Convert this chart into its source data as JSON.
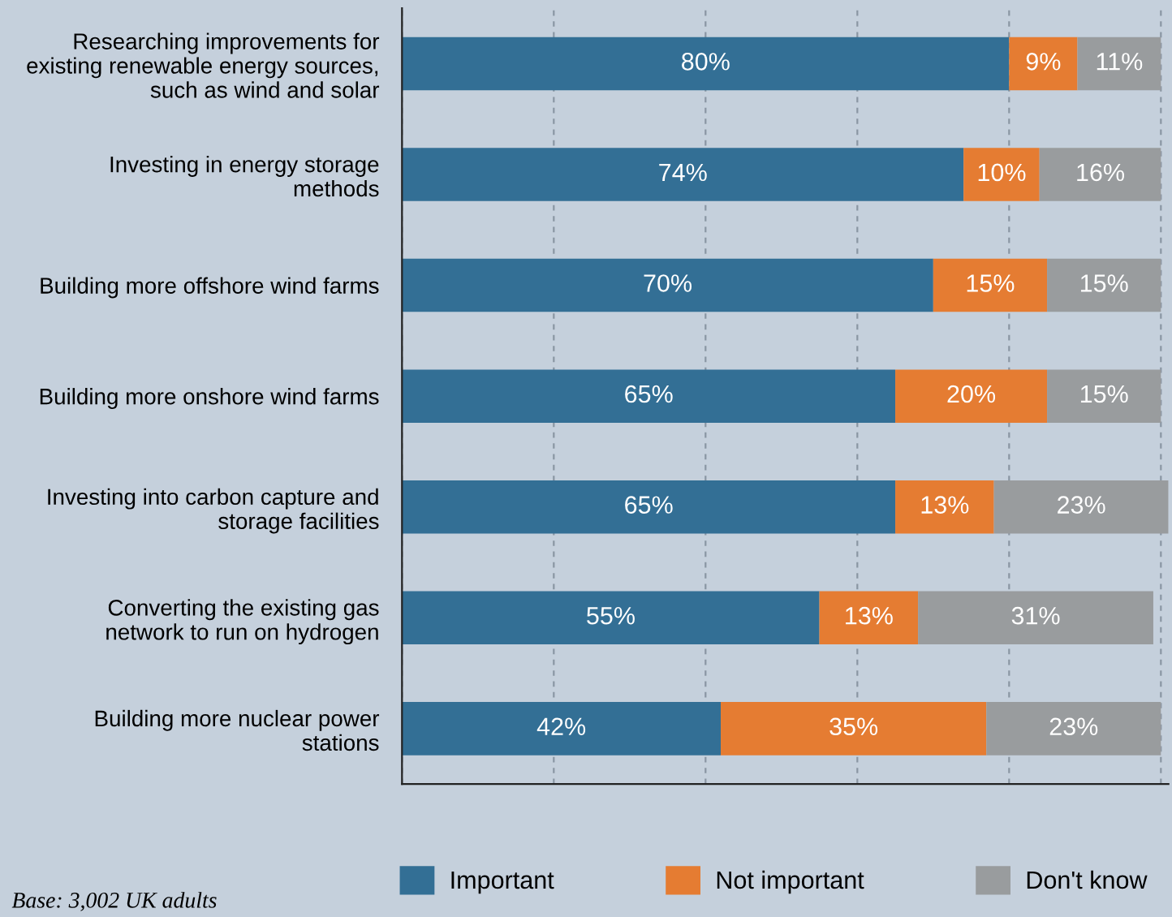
{
  "chart_data": {
    "type": "bar",
    "orientation": "horizontal",
    "stacked": true,
    "categories": [
      "Researching improvements for\nexisting renewable energy sources,\nsuch as wind and solar",
      "Investing in energy storage\nmethods",
      "Building more offshore wind farms",
      "Building more onshore wind farms",
      "Investing into carbon capture and\nstorage facilities",
      "Converting the existing gas\nnetwork to run on hydrogen",
      "Building more nuclear power\nstations"
    ],
    "series": [
      {
        "name": "Important",
        "color": "#336f95",
        "values": [
          80,
          74,
          70,
          65,
          65,
          55,
          42
        ],
        "value_labels": [
          "80%",
          "74%",
          "70%",
          "65%",
          "65%",
          "55%",
          "42%"
        ]
      },
      {
        "name": "Not important",
        "color": "#e57c32",
        "values": [
          9,
          10,
          15,
          20,
          13,
          13,
          35
        ],
        "value_labels": [
          "9%",
          "10%",
          "15%",
          "20%",
          "13%",
          "13%",
          "35%"
        ]
      },
      {
        "name": "Don't know",
        "color": "#999c9e",
        "values": [
          11,
          16,
          15,
          15,
          23,
          31,
          23
        ],
        "value_labels": [
          "11%",
          "16%",
          "15%",
          "15%",
          "23%",
          "31%",
          "23%"
        ]
      }
    ],
    "xlim": [
      0,
      101
    ],
    "xticks": [
      {
        "value": 0,
        "label": null
      },
      {
        "value": 20,
        "label": null
      },
      {
        "value": 40,
        "label": null
      },
      {
        "value": 60,
        "label": null
      },
      {
        "value": 80,
        "label": null
      },
      {
        "value": 100,
        "label": null
      }
    ],
    "tick_labels": "y",
    "grid": "x",
    "legend": "bottom",
    "annotations": [
      "Base: 3,002 UK adults"
    ]
  }
}
